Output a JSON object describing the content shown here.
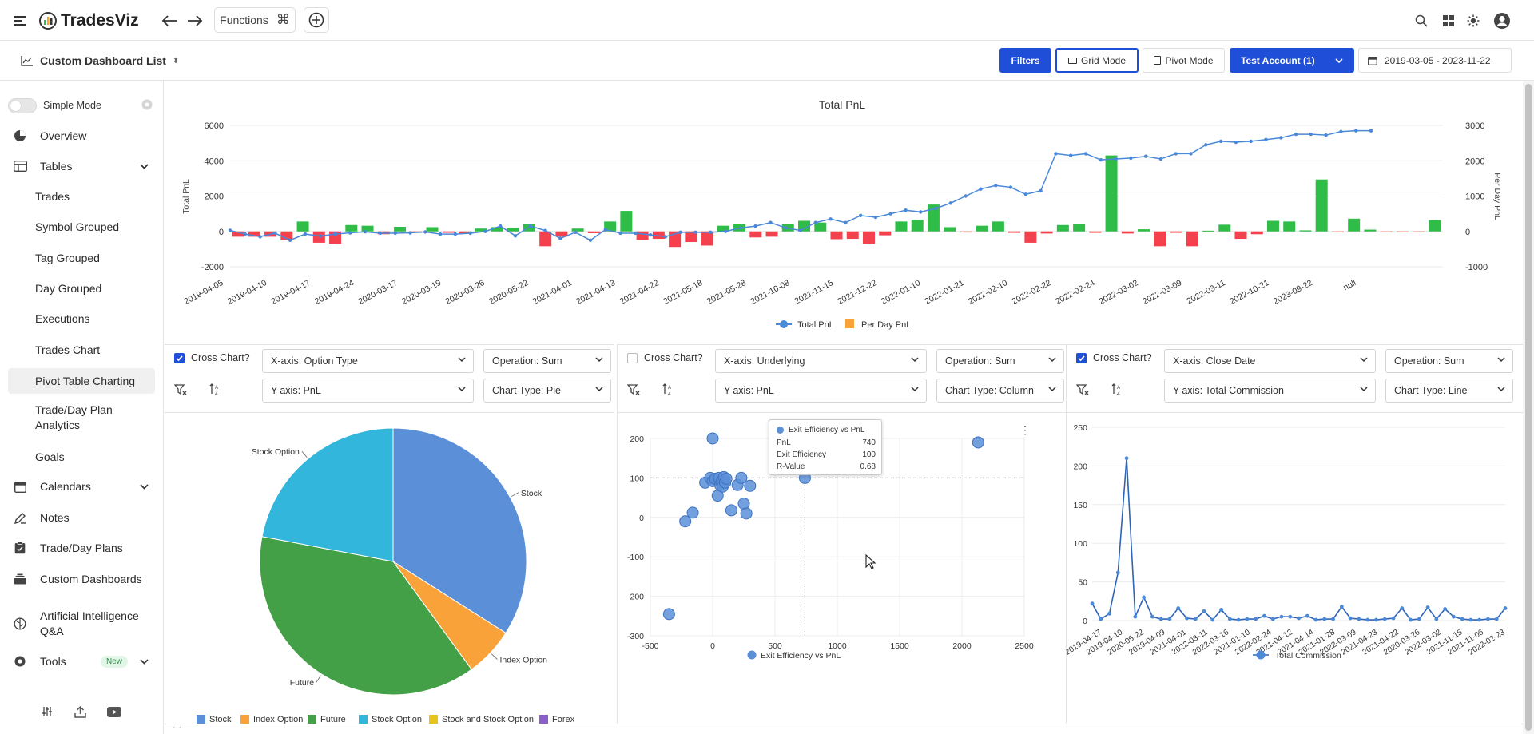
{
  "app": {
    "name": "TradesViz",
    "functions_label": "Functions"
  },
  "subbar": {
    "dashboard_list": "Custom Dashboard List",
    "filters": "Filters",
    "grid_mode": "Grid Mode",
    "pivot_mode": "Pivot Mode",
    "account": "Test Account (1)",
    "date_range": "2019-03-05 - 2023-11-22"
  },
  "sidebar": {
    "simple_mode": "Simple Mode",
    "items": [
      {
        "label": "Overview"
      },
      {
        "label": "Tables"
      },
      {
        "label": "Trades"
      },
      {
        "label": "Symbol Grouped"
      },
      {
        "label": "Tag Grouped"
      },
      {
        "label": "Day Grouped"
      },
      {
        "label": "Executions"
      },
      {
        "label": "Trades Chart"
      },
      {
        "label": "Pivot Table Charting"
      },
      {
        "label": "Trade/Day Plan Analytics"
      },
      {
        "label": "Goals"
      },
      {
        "label": "Calendars"
      },
      {
        "label": "Notes"
      },
      {
        "label": "Trade/Day Plans"
      },
      {
        "label": "Custom Dashboards"
      },
      {
        "label": "Artificial Intelligence Q&A"
      },
      {
        "label": "Tools"
      }
    ],
    "tools_badge": "New"
  },
  "panels": [
    {
      "cross_chart": "Cross Chart?",
      "x_axis": "X-axis: Option Type",
      "operation": "Operation: Sum",
      "y_axis": "Y-axis: PnL",
      "chart_type": "Chart Type: Pie",
      "checked": true
    },
    {
      "cross_chart": "Cross Chart?",
      "x_axis": "X-axis: Underlying",
      "operation": "Operation: Sum",
      "y_axis": "Y-axis: PnL",
      "chart_type": "Chart Type: Column",
      "checked": false
    },
    {
      "cross_chart": "Cross Chart?",
      "x_axis": "X-axis: Close Date",
      "operation": "Operation: Sum",
      "y_axis": "Y-axis: Total Commission",
      "chart_type": "Chart Type: Line",
      "checked": true
    }
  ],
  "tooltip": {
    "title": "Exit Efficiency vs PnL",
    "rows": [
      {
        "k": "PnL",
        "v": "740"
      },
      {
        "k": "Exit Efficiency",
        "v": "100"
      },
      {
        "k": "R-Value",
        "v": "0.68"
      }
    ]
  },
  "colors": {
    "accent": "#1f4fd8",
    "green": "#2fbd48",
    "red": "#f5404d",
    "line": "#4a88d8"
  },
  "chart_data": [
    {
      "type": "bar",
      "title": "Total PnL",
      "ylabel": "Total PnL",
      "y2label": "Per Day PnL",
      "ylim": [
        -2000,
        6000
      ],
      "y2lim": [
        -1000,
        3000
      ],
      "yticks": [
        "6000",
        "4000",
        "2000",
        "0",
        "-2000"
      ],
      "y2ticks": [
        "3000",
        "2000",
        "1000",
        "0",
        "-1000"
      ],
      "tick_labels": [
        "2019-04-05",
        "2019-04-10",
        "2019-04-17",
        "2019-04-24",
        "2020-03-17",
        "2020-03-19",
        "2020-03-26",
        "2020-05-22",
        "2021-04-01",
        "2021-04-13",
        "2021-04-22",
        "2021-05-18",
        "2021-05-28",
        "2021-10-08",
        "2021-11-15",
        "2021-12-22",
        "2022-01-10",
        "2022-01-21",
        "2022-02-10",
        "2022-02-22",
        "2022-02-24",
        "2022-03-02",
        "2022-03-09",
        "2022-03-11",
        "2022-10-21",
        "2023-09-22",
        "null"
      ],
      "series": [
        {
          "name": "Total PnL",
          "kind": "line",
          "values": [
            60,
            -150,
            -300,
            -100,
            -500,
            -150,
            -260,
            -150,
            -80,
            -20,
            -100,
            -100,
            -80,
            -30,
            -150,
            -150,
            -100,
            0,
            300,
            -250,
            300,
            50,
            -400,
            -50,
            -500,
            100,
            -100,
            -100,
            -200,
            -300,
            -50,
            -50,
            -50,
            0,
            200,
            300,
            500,
            200,
            50,
            500,
            700,
            500,
            900,
            800,
            1000,
            1200,
            1100,
            1300,
            1600,
            2000,
            2400,
            2600,
            2500,
            2100,
            2300,
            4400,
            4300,
            4400,
            4050,
            4100,
            4150,
            4250,
            4100,
            4400,
            4400,
            4900,
            5100,
            5050,
            5100,
            5200,
            5300,
            5500,
            5500,
            5450,
            5650,
            5700,
            5700
          ]
        },
        {
          "name": "Per Day PnL",
          "kind": "bar",
          "values": [
            -150,
            -150,
            -150,
            -250,
            280,
            -320,
            -350,
            180,
            160,
            -80,
            130,
            -40,
            120,
            -40,
            -60,
            80,
            120,
            100,
            220,
            -420,
            -150,
            80,
            -50,
            280,
            580,
            -240,
            -210,
            -440,
            -300,
            -400,
            160,
            220,
            -170,
            -150,
            200,
            300,
            250,
            -220,
            -210,
            -350,
            -110,
            280,
            330,
            760,
            120,
            -30,
            160,
            280,
            -40,
            -320,
            -60,
            180,
            220,
            -40,
            2150,
            -60,
            60,
            -420,
            -40,
            -420,
            20,
            190,
            -210,
            -80,
            300,
            280,
            30,
            1470,
            -20,
            360,
            50,
            -20,
            -20,
            -20,
            320
          ]
        }
      ]
    },
    {
      "type": "pie",
      "categories": [
        "Stock",
        "Index Option",
        "Future",
        "Stock Option",
        "Stock and Stock Option",
        "Forex"
      ],
      "values": [
        34,
        6,
        38,
        22,
        0,
        0
      ],
      "label_only": [
        "Stock",
        "Index Option",
        "Future",
        "Stock Option"
      ],
      "legend": "bottom",
      "colors": [
        "#5b8fd8",
        "#f9a23a",
        "#43a046",
        "#33b6dc",
        "#e6c41d",
        "#8b5fc7"
      ]
    },
    {
      "type": "scatter",
      "legend_label": "Exit Efficiency vs PnL",
      "xlim": [
        -500,
        2500
      ],
      "ylim": [
        -300,
        200
      ],
      "xticks": [
        "-500",
        "0",
        "500",
        "1000",
        "1500",
        "2000",
        "2500"
      ],
      "yticks": [
        "200",
        "100",
        "0",
        "-100",
        "-200",
        "-300"
      ],
      "x": [
        -350,
        -220,
        -160,
        0,
        -60,
        -20,
        0,
        20,
        40,
        50,
        60,
        70,
        80,
        90,
        100,
        110,
        150,
        200,
        230,
        250,
        270,
        300,
        740,
        2130
      ],
      "y": [
        -245,
        -10,
        12,
        200,
        88,
        100,
        92,
        98,
        55,
        100,
        82,
        90,
        78,
        102,
        88,
        98,
        18,
        82,
        100,
        35,
        10,
        80,
        100,
        190
      ]
    },
    {
      "type": "line",
      "legend_label": "Total Commission",
      "ylim": [
        0,
        250
      ],
      "yticks": [
        "250",
        "200",
        "150",
        "100",
        "50",
        "0"
      ],
      "tick_labels": [
        "2019-04-17",
        "2019-04-10",
        "2020-05-22",
        "2019-04-09",
        "2021-04-01",
        "2022-03-11",
        "2022-03-16",
        "2021-01-10",
        "2022-02-24",
        "2021-04-12",
        "2021-04-14",
        "2021-01-28",
        "2022-03-09",
        "2021-04-23",
        "2021-04-22",
        "2020-03-26",
        "2022-03-02",
        "2021-11-15",
        "2021-11-06",
        "2022-02-23"
      ],
      "values": [
        22,
        2,
        9,
        62,
        210,
        5,
        30,
        5,
        2,
        2,
        16,
        3,
        2,
        12,
        1,
        14,
        2,
        1,
        2,
        2,
        6,
        2,
        5,
        5,
        3,
        6,
        1,
        2,
        2,
        18,
        3,
        2,
        1,
        1,
        2,
        3,
        16,
        1,
        2,
        17,
        2,
        15,
        5,
        2,
        1,
        1,
        2,
        2,
        16
      ]
    }
  ]
}
